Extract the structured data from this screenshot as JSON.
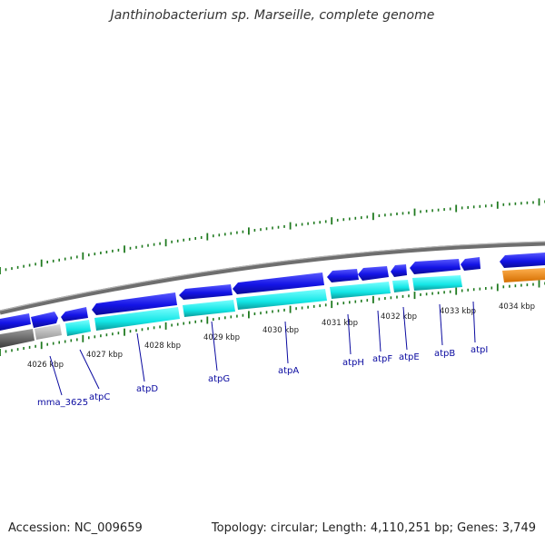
{
  "title": "Janthinobacterium sp. Marseille, complete genome",
  "accession": "Accession: NC_009659",
  "summary": "Topology: circular; Length: 4,110,251 bp; Genes: 3,749",
  "colors": {
    "gene_forward": "#1414e6",
    "gene_reverse": "#14e6e6",
    "pseudo": "#b4b4b4",
    "rna": "#f08c14",
    "backbone": "#7a7a7a",
    "tick": "#1f7a1f",
    "gene_label": "#0a0aa0"
  },
  "ruler_labels": [
    {
      "kbp": 4026,
      "text": "4026 kbp"
    },
    {
      "kbp": 4027,
      "text": "4027 kbp"
    },
    {
      "kbp": 4028,
      "text": "4028 kbp"
    },
    {
      "kbp": 4029,
      "text": "4029 kbp"
    },
    {
      "kbp": 4030,
      "text": "4030 kbp"
    },
    {
      "kbp": 4031,
      "text": "4031 kbp"
    },
    {
      "kbp": 4032,
      "text": "4032 kbp"
    },
    {
      "kbp": 4033,
      "text": "4033 kbp"
    },
    {
      "kbp": 4034,
      "text": "4034 kbp"
    }
  ],
  "genes": [
    {
      "name": "mma_3625",
      "kbp": 4026.35
    },
    {
      "name": "atpC",
      "kbp": 4026.75
    },
    {
      "name": "atpD",
      "kbp": 4027.7
    },
    {
      "name": "atpG",
      "kbp": 4028.85
    },
    {
      "name": "atpA",
      "kbp": 4030.1
    },
    {
      "name": "atpH",
      "kbp": 4031.0
    },
    {
      "name": "atpF",
      "kbp": 4031.5
    },
    {
      "name": "atpE",
      "kbp": 4031.95
    },
    {
      "name": "atpB",
      "kbp": 4032.6
    },
    {
      "name": "atpI",
      "kbp": 4033.45
    }
  ]
}
